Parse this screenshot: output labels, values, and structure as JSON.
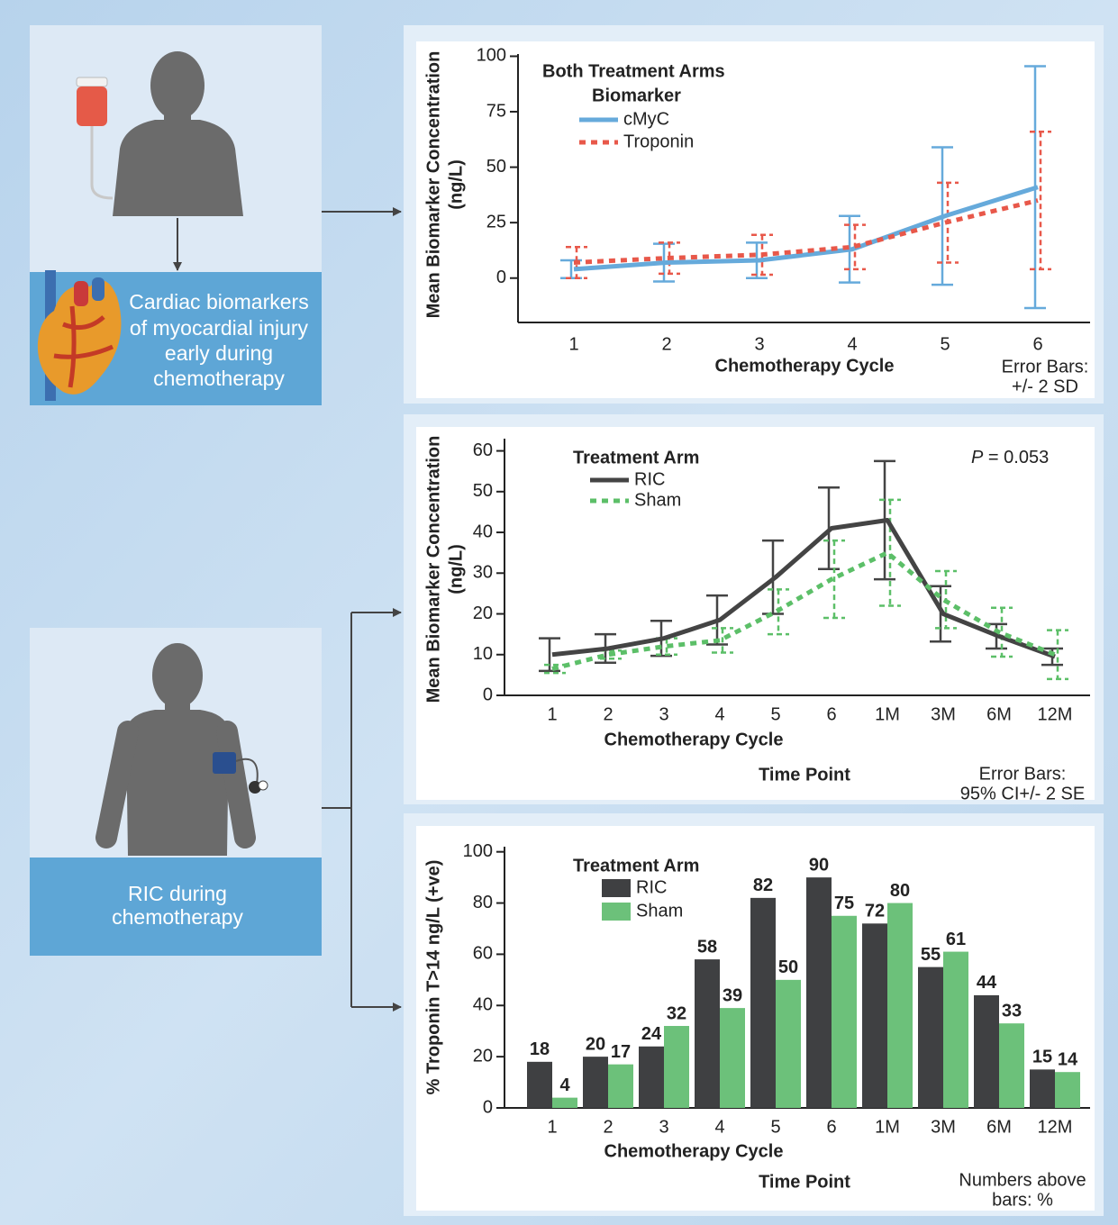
{
  "panels": [
    {
      "label": [
        "Cardiac biomarkers",
        "of myocardial injury",
        "early during",
        "chemotherapy"
      ]
    },
    {
      "label": [
        "RIC during",
        "chemotherapy"
      ]
    }
  ],
  "chart_data": [
    {
      "type": "line",
      "title": "Both Treatment Arms",
      "legend_title": "Biomarker",
      "categories": [
        "1",
        "2",
        "3",
        "4",
        "5",
        "6"
      ],
      "series": [
        {
          "name": "cMyC",
          "color": "#66aadb",
          "dashed": false,
          "values": [
            4,
            7,
            8,
            13,
            28,
            41
          ],
          "errors": [
            4,
            8.5,
            8,
            15,
            31,
            54.5
          ]
        },
        {
          "name": "Troponin",
          "color": "#e8584a",
          "dashed": true,
          "values": [
            7,
            9,
            10.5,
            14,
            25,
            35
          ],
          "errors": [
            7,
            7,
            9,
            10,
            18,
            31
          ]
        }
      ],
      "ylim": [
        -20,
        101
      ],
      "yticks": [
        0,
        25,
        50,
        75,
        100
      ],
      "x_label": "Chemotherapy Cycle",
      "y_label": [
        "Mean Biomarker Concentration",
        "(ng/L)"
      ],
      "note": [
        "Error Bars:",
        "+/- 2 SD"
      ]
    },
    {
      "type": "line",
      "legend_title": "Treatment Arm",
      "categories": [
        "1",
        "2",
        "3",
        "4",
        "5",
        "6",
        "1M",
        "3M",
        "6M",
        "12M"
      ],
      "series": [
        {
          "name": "RIC",
          "color": "#444444",
          "dashed": false,
          "values": [
            10,
            11.5,
            14,
            18.5,
            29,
            41,
            43,
            20,
            14.5,
            9.5
          ],
          "errors": [
            4,
            3.5,
            4.3,
            6,
            9,
            10,
            14.5,
            6.8,
            3,
            2
          ]
        },
        {
          "name": "Sham",
          "color": "#5cbf68",
          "dashed": true,
          "values": [
            6.5,
            10,
            12,
            13.5,
            20.5,
            28.5,
            35,
            23.5,
            15.5,
            10
          ],
          "errors": [
            1,
            1,
            2,
            3,
            5.5,
            9.5,
            13,
            7,
            6,
            6
          ]
        }
      ],
      "ylim": [
        0,
        63
      ],
      "yticks": [
        0,
        10,
        20,
        30,
        40,
        50,
        60
      ],
      "x_label": "Chemotherapy Cycle",
      "secondary_x_label": "Time Point",
      "y_label": [
        "Mean Biomarker Concentration",
        "(ng/L)"
      ],
      "annotation": {
        "italic": "P",
        "text": "= 0.053"
      },
      "note": [
        "Error Bars:",
        "95% CI+/- 2 SE"
      ]
    },
    {
      "type": "bar",
      "legend_title": "Treatment Arm",
      "categories": [
        "1",
        "2",
        "3",
        "4",
        "5",
        "6",
        "1M",
        "3M",
        "6M",
        "12M"
      ],
      "series": [
        {
          "name": "RIC",
          "color": "#3f4042",
          "values": [
            18,
            20,
            24,
            58,
            82,
            90,
            72,
            55,
            44,
            15
          ]
        },
        {
          "name": "Sham",
          "color": "#6cc17a",
          "values": [
            4,
            17,
            32,
            39,
            50,
            75,
            80,
            61,
            33,
            14
          ]
        }
      ],
      "ylim": [
        0,
        102
      ],
      "yticks": [
        0,
        20,
        40,
        60,
        80,
        100
      ],
      "x_label": "Chemotherapy Cycle",
      "secondary_x_label": "Time Point",
      "y_label": [
        "% Troponin T>14 ng/L (+ve)"
      ],
      "note": [
        "Numbers above",
        "bars: %"
      ]
    }
  ]
}
